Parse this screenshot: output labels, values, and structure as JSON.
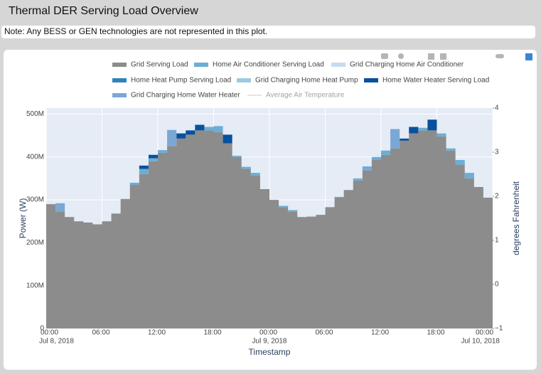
{
  "header": {
    "title": "Thermal DER Serving Load Overview",
    "note": "Note: Any BESS or GEN technologies are not represented in this plot."
  },
  "chart_data": {
    "type": "stacked-step-area",
    "xlabel": "Timestamp",
    "ylabel": "Power (W)",
    "y2label": "degrees Fahrenheit",
    "x": [
      "2018-07-08 00:00",
      "2018-07-08 01:00",
      "2018-07-08 02:00",
      "2018-07-08 03:00",
      "2018-07-08 04:00",
      "2018-07-08 05:00",
      "2018-07-08 06:00",
      "2018-07-08 07:00",
      "2018-07-08 08:00",
      "2018-07-08 09:00",
      "2018-07-08 10:00",
      "2018-07-08 11:00",
      "2018-07-08 12:00",
      "2018-07-08 13:00",
      "2018-07-08 14:00",
      "2018-07-08 15:00",
      "2018-07-08 16:00",
      "2018-07-08 17:00",
      "2018-07-08 18:00",
      "2018-07-08 19:00",
      "2018-07-08 20:00",
      "2018-07-08 21:00",
      "2018-07-08 22:00",
      "2018-07-08 23:00",
      "2018-07-09 00:00",
      "2018-07-09 01:00",
      "2018-07-09 02:00",
      "2018-07-09 03:00",
      "2018-07-09 04:00",
      "2018-07-09 05:00",
      "2018-07-09 06:00",
      "2018-07-09 07:00",
      "2018-07-09 08:00",
      "2018-07-09 09:00",
      "2018-07-09 10:00",
      "2018-07-09 11:00",
      "2018-07-09 12:00",
      "2018-07-09 13:00",
      "2018-07-09 14:00",
      "2018-07-09 15:00",
      "2018-07-09 16:00",
      "2018-07-09 17:00",
      "2018-07-09 18:00",
      "2018-07-09 19:00",
      "2018-07-09 20:00",
      "2018-07-09 21:00",
      "2018-07-09 22:00",
      "2018-07-09 23:00"
    ],
    "xlim": [
      "2018-07-08 00:00",
      "2018-07-10 00:00"
    ],
    "xticks": [
      {
        "value": "2018-07-08 00:00",
        "label": "00:00",
        "date": "Jul 8, 2018"
      },
      {
        "value": "2018-07-08 06:00",
        "label": "06:00"
      },
      {
        "value": "2018-07-08 12:00",
        "label": "12:00"
      },
      {
        "value": "2018-07-08 18:00",
        "label": "18:00"
      },
      {
        "value": "2018-07-09 00:00",
        "label": "00:00",
        "date": "Jul 9, 2018"
      },
      {
        "value": "2018-07-09 06:00",
        "label": "06:00"
      },
      {
        "value": "2018-07-09 12:00",
        "label": "12:00"
      },
      {
        "value": "2018-07-09 18:00",
        "label": "18:00"
      },
      {
        "value": "2018-07-10 00:00",
        "label": "00:00",
        "date": "Jul 10, 2018"
      }
    ],
    "ylim": [
      0,
      514000000
    ],
    "yticks": [
      0,
      {
        "value": 100000000,
        "label": "100M"
      },
      {
        "value": 200000000,
        "label": "200M"
      },
      {
        "value": 300000000,
        "label": "300M"
      },
      {
        "value": 400000000,
        "label": "400M"
      },
      {
        "value": 500000000,
        "label": "500M"
      }
    ],
    "y2lim": [
      -1,
      4
    ],
    "y2ticks": [
      {
        "value": -1,
        "label": "−1"
      },
      0,
      1,
      2,
      3,
      4
    ],
    "grid": true,
    "series": [
      {
        "name": "Grid Serving Load",
        "color": "#8c8c8c",
        "values": [
          290000000,
          272000000,
          260000000,
          250000000,
          247000000,
          243000000,
          250000000,
          268000000,
          302000000,
          335000000,
          360000000,
          390000000,
          410000000,
          425000000,
          443000000,
          452000000,
          462000000,
          462000000,
          458000000,
          432000000,
          400000000,
          372000000,
          357000000,
          325000000,
          300000000,
          283000000,
          272000000,
          260000000,
          261000000,
          265000000,
          283000000,
          305000000,
          323000000,
          345000000,
          368000000,
          393000000,
          405000000,
          420000000,
          438000000,
          455000000,
          462000000,
          462000000,
          448000000,
          415000000,
          382000000,
          350000000,
          330000000,
          305000000
        ]
      },
      {
        "name": "Home Air Conditioner Serving Load",
        "color": "#6baed6",
        "values": [
          0,
          0,
          0,
          0,
          0,
          0,
          0,
          0,
          0,
          5000000,
          12000000,
          7000000,
          6000000,
          0,
          0,
          0,
          0,
          8000000,
          14000000,
          0,
          3000000,
          5000000,
          6000000,
          0,
          0,
          3000000,
          4000000,
          0,
          0,
          0,
          0,
          2000000,
          0,
          5000000,
          0,
          7000000,
          10000000,
          0,
          0,
          0,
          6000000,
          0,
          7000000,
          5000000,
          11000000,
          13000000,
          0,
          0
        ]
      },
      {
        "name": "Grid Charging Home Air Conditioner",
        "color": "#c6dbef",
        "values": [
          0,
          0,
          0,
          0,
          0,
          0,
          0,
          0,
          0,
          0,
          0,
          0,
          0,
          0,
          0,
          0,
          0,
          0,
          0,
          0,
          0,
          0,
          0,
          0,
          0,
          0,
          0,
          0,
          0,
          0,
          0,
          0,
          0,
          0,
          0,
          0,
          0,
          0,
          0,
          0,
          0,
          0,
          0,
          0,
          0,
          0,
          0,
          0
        ]
      },
      {
        "name": "Home Heat Pump Serving Load",
        "color": "#3182bd",
        "values": [
          0,
          0,
          0,
          0,
          0,
          0,
          0,
          0,
          0,
          0,
          0,
          0,
          0,
          0,
          0,
          0,
          0,
          0,
          0,
          0,
          0,
          0,
          0,
          0,
          0,
          0,
          0,
          0,
          0,
          0,
          0,
          0,
          0,
          0,
          0,
          0,
          0,
          0,
          0,
          0,
          0,
          0,
          0,
          0,
          0,
          0,
          0,
          0
        ]
      },
      {
        "name": "Grid Charging Home Heat Pump",
        "color": "#9ecae1",
        "values": [
          0,
          0,
          0,
          0,
          0,
          0,
          0,
          0,
          0,
          0,
          0,
          0,
          0,
          0,
          0,
          0,
          0,
          0,
          0,
          0,
          0,
          0,
          0,
          0,
          0,
          0,
          0,
          0,
          0,
          0,
          0,
          0,
          0,
          0,
          0,
          0,
          0,
          0,
          0,
          0,
          0,
          0,
          0,
          0,
          0,
          0,
          0,
          0
        ]
      },
      {
        "name": "Home Water Heater Serving Load",
        "color": "#08519c",
        "values": [
          0,
          0,
          0,
          0,
          0,
          0,
          0,
          0,
          0,
          0,
          8000000,
          8000000,
          0,
          0,
          12000000,
          10000000,
          13000000,
          0,
          0,
          20000000,
          0,
          0,
          0,
          0,
          0,
          0,
          0,
          0,
          0,
          0,
          0,
          0,
          0,
          0,
          0,
          0,
          0,
          0,
          5000000,
          15000000,
          0,
          25000000,
          0,
          0,
          0,
          0,
          0,
          0
        ]
      },
      {
        "name": "Grid Charging Home Water Heater",
        "color": "#7ba7d4",
        "values": [
          0,
          20000000,
          0,
          0,
          0,
          0,
          0,
          0,
          0,
          0,
          0,
          0,
          0,
          38000000,
          0,
          0,
          0,
          0,
          0,
          0,
          0,
          0,
          0,
          0,
          0,
          0,
          0,
          0,
          0,
          0,
          0,
          0,
          0,
          0,
          10000000,
          0,
          0,
          45000000,
          0,
          0,
          0,
          0,
          0,
          0,
          0,
          0,
          0,
          0
        ]
      },
      {
        "name": "Average Air Temperature",
        "color": "#f4a4a4",
        "axis": "y2",
        "visible": "legendonly"
      }
    ]
  }
}
